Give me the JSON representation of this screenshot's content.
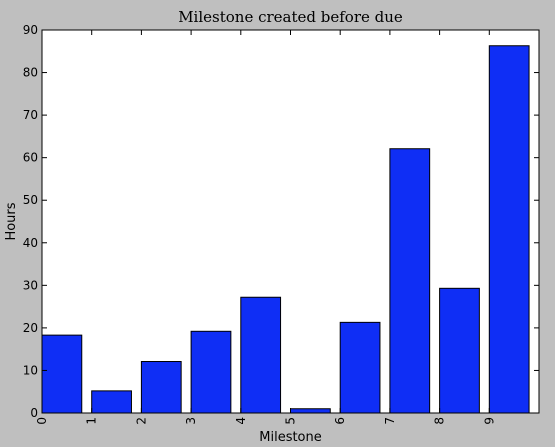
{
  "chart_data": {
    "type": "bar",
    "title": "Milestone created before due",
    "xlabel": "Milestone",
    "ylabel": "Hours",
    "categories": [
      "0",
      "1",
      "2",
      "3",
      "4",
      "5",
      "6",
      "7",
      "8",
      "9"
    ],
    "values": [
      18.3,
      5.2,
      12.1,
      19.2,
      27.2,
      1.0,
      21.3,
      62.1,
      29.3,
      86.3
    ],
    "ylim": [
      0,
      90
    ],
    "yticks": [
      0,
      10,
      20,
      30,
      40,
      50,
      60,
      70,
      80,
      90
    ],
    "xlim": [
      0,
      10
    ],
    "grid": false,
    "bar_color": "#0f2ef5",
    "background": "#bfbfbf"
  }
}
